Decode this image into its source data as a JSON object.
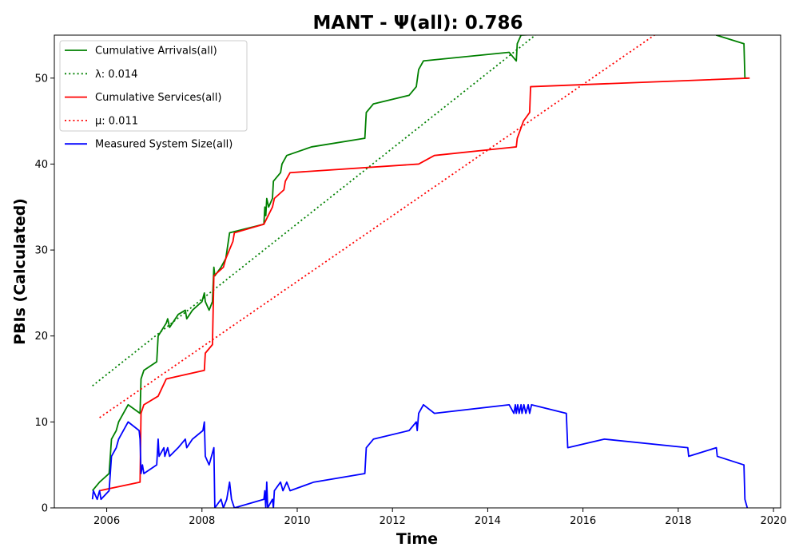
{
  "chart_data": {
    "type": "line",
    "title": "MANT -  Ψ(all): 0.786",
    "xlabel": "Time",
    "ylabel": "PBIs (Calculated)",
    "xlim": [
      2004.9,
      2020.15
    ],
    "ylim": [
      0,
      55
    ],
    "xticks": [
      2006,
      2008,
      2010,
      2012,
      2014,
      2016,
      2018,
      2020
    ],
    "yticks": [
      0,
      10,
      20,
      30,
      40,
      50
    ],
    "grid": false,
    "legend_position": "top-left",
    "series": [
      {
        "name": "Cumulative Arrivals(all)",
        "color": "#008000",
        "style": "solid",
        "points": [
          [
            2005.7,
            2
          ],
          [
            2005.85,
            3
          ],
          [
            2006.05,
            4
          ],
          [
            2006.1,
            8
          ],
          [
            2006.2,
            9
          ],
          [
            2006.25,
            10
          ],
          [
            2006.45,
            12
          ],
          [
            2006.7,
            11
          ],
          [
            2006.72,
            15
          ],
          [
            2006.78,
            16
          ],
          [
            2007.05,
            17
          ],
          [
            2007.08,
            20
          ],
          [
            2007.25,
            21.5
          ],
          [
            2007.28,
            22
          ],
          [
            2007.32,
            21
          ],
          [
            2007.5,
            22.5
          ],
          [
            2007.65,
            23
          ],
          [
            2007.68,
            22
          ],
          [
            2007.8,
            23
          ],
          [
            2008.0,
            24
          ],
          [
            2008.05,
            25
          ],
          [
            2008.07,
            24
          ],
          [
            2008.15,
            23
          ],
          [
            2008.22,
            24
          ],
          [
            2008.25,
            28
          ],
          [
            2008.27,
            27
          ],
          [
            2008.4,
            28
          ],
          [
            2008.5,
            29
          ],
          [
            2008.58,
            32
          ],
          [
            2009.3,
            33
          ],
          [
            2009.32,
            35
          ],
          [
            2009.34,
            34
          ],
          [
            2009.36,
            36
          ],
          [
            2009.4,
            35
          ],
          [
            2009.48,
            36
          ],
          [
            2009.5,
            38
          ],
          [
            2009.65,
            39
          ],
          [
            2009.68,
            40
          ],
          [
            2009.78,
            41
          ],
          [
            2010.3,
            42
          ],
          [
            2011.42,
            43
          ],
          [
            2011.45,
            46
          ],
          [
            2011.6,
            47
          ],
          [
            2012.35,
            48
          ],
          [
            2012.5,
            49
          ],
          [
            2012.55,
            51
          ],
          [
            2012.65,
            52
          ],
          [
            2014.45,
            53
          ],
          [
            2014.6,
            52
          ],
          [
            2014.62,
            54
          ],
          [
            2014.7,
            55
          ],
          [
            2018.6,
            56
          ],
          [
            2018.8,
            55
          ],
          [
            2019.38,
            54
          ],
          [
            2019.4,
            50
          ],
          [
            2019.45,
            50
          ]
        ]
      },
      {
        "name": "λ: 0.014",
        "color": "#008000",
        "style": "dotted",
        "points": [
          [
            2005.7,
            14.2
          ],
          [
            2015.0,
            55
          ],
          [
            2019.45,
            75
          ]
        ]
      },
      {
        "name": "Cumulative Services(all)",
        "color": "#ff0000",
        "style": "solid",
        "points": [
          [
            2005.85,
            2
          ],
          [
            2006.7,
            3
          ],
          [
            2006.72,
            11
          ],
          [
            2006.78,
            12
          ],
          [
            2007.08,
            13
          ],
          [
            2007.25,
            15
          ],
          [
            2008.05,
            16
          ],
          [
            2008.07,
            18
          ],
          [
            2008.22,
            19
          ],
          [
            2008.25,
            27
          ],
          [
            2008.45,
            28
          ],
          [
            2008.5,
            29
          ],
          [
            2008.65,
            31
          ],
          [
            2008.68,
            32
          ],
          [
            2009.3,
            33
          ],
          [
            2009.48,
            35
          ],
          [
            2009.52,
            36
          ],
          [
            2009.72,
            37
          ],
          [
            2009.75,
            38
          ],
          [
            2009.85,
            39
          ],
          [
            2012.55,
            40
          ],
          [
            2012.88,
            41
          ],
          [
            2014.6,
            42
          ],
          [
            2014.62,
            43
          ],
          [
            2014.75,
            45
          ],
          [
            2014.88,
            46
          ],
          [
            2014.9,
            49
          ],
          [
            2019.5,
            50
          ]
        ]
      },
      {
        "name": "μ: 0.011",
        "color": "#ff0000",
        "style": "dotted",
        "points": [
          [
            2005.85,
            10.5
          ],
          [
            2017.5,
            55
          ],
          [
            2019.5,
            64
          ]
        ]
      },
      {
        "name": "Measured System Size(all)",
        "color": "#0000ff",
        "style": "solid",
        "points": [
          [
            2005.7,
            1
          ],
          [
            2005.72,
            2
          ],
          [
            2005.8,
            1
          ],
          [
            2005.85,
            2
          ],
          [
            2005.88,
            1
          ],
          [
            2006.05,
            2
          ],
          [
            2006.1,
            6
          ],
          [
            2006.2,
            7
          ],
          [
            2006.25,
            8
          ],
          [
            2006.45,
            10
          ],
          [
            2006.68,
            9
          ],
          [
            2006.7,
            8
          ],
          [
            2006.72,
            4
          ],
          [
            2006.75,
            5
          ],
          [
            2006.78,
            4
          ],
          [
            2007.05,
            5
          ],
          [
            2007.08,
            8
          ],
          [
            2007.1,
            6
          ],
          [
            2007.2,
            7
          ],
          [
            2007.22,
            6
          ],
          [
            2007.28,
            7
          ],
          [
            2007.32,
            6
          ],
          [
            2007.5,
            7
          ],
          [
            2007.65,
            8
          ],
          [
            2007.68,
            7
          ],
          [
            2007.8,
            8
          ],
          [
            2008.02,
            9
          ],
          [
            2008.05,
            10
          ],
          [
            2008.07,
            6
          ],
          [
            2008.15,
            5
          ],
          [
            2008.25,
            7
          ],
          [
            2008.27,
            0
          ],
          [
            2008.4,
            1
          ],
          [
            2008.45,
            0
          ],
          [
            2008.52,
            1
          ],
          [
            2008.58,
            3
          ],
          [
            2008.62,
            1
          ],
          [
            2008.68,
            0
          ],
          [
            2009.3,
            1
          ],
          [
            2009.32,
            2
          ],
          [
            2009.34,
            0
          ],
          [
            2009.36,
            3
          ],
          [
            2009.38,
            0
          ],
          [
            2009.48,
            1
          ],
          [
            2009.5,
            0
          ],
          [
            2009.52,
            2
          ],
          [
            2009.65,
            3
          ],
          [
            2009.7,
            2
          ],
          [
            2009.78,
            3
          ],
          [
            2009.85,
            2
          ],
          [
            2010.35,
            3
          ],
          [
            2011.42,
            4
          ],
          [
            2011.45,
            7
          ],
          [
            2011.6,
            8
          ],
          [
            2012.35,
            9
          ],
          [
            2012.5,
            10
          ],
          [
            2012.52,
            9
          ],
          [
            2012.55,
            11
          ],
          [
            2012.65,
            12
          ],
          [
            2012.88,
            11
          ],
          [
            2014.45,
            12
          ],
          [
            2014.55,
            11
          ],
          [
            2014.58,
            12
          ],
          [
            2014.6,
            11
          ],
          [
            2014.63,
            12
          ],
          [
            2014.66,
            11
          ],
          [
            2014.7,
            12
          ],
          [
            2014.72,
            11
          ],
          [
            2014.76,
            12
          ],
          [
            2014.8,
            11
          ],
          [
            2014.85,
            12
          ],
          [
            2014.88,
            11
          ],
          [
            2014.92,
            12
          ],
          [
            2015.65,
            11
          ],
          [
            2015.68,
            7
          ],
          [
            2016.45,
            8
          ],
          [
            2018.2,
            7
          ],
          [
            2018.22,
            6
          ],
          [
            2018.8,
            7
          ],
          [
            2018.82,
            6
          ],
          [
            2019.38,
            5
          ],
          [
            2019.4,
            1
          ],
          [
            2019.45,
            0
          ]
        ]
      }
    ]
  }
}
